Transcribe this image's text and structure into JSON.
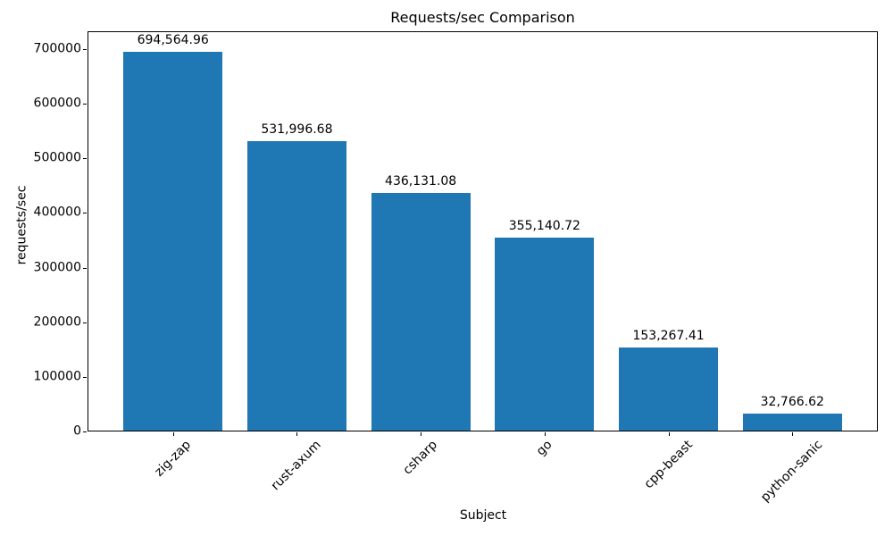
{
  "chart_data": {
    "type": "bar",
    "title": "Requests/sec Comparison",
    "xlabel": "Subject",
    "ylabel": "requests/sec",
    "categories": [
      "zig-zap",
      "rust-axum",
      "csharp",
      "go",
      "cpp-beast",
      "python-sanic"
    ],
    "values": [
      694564.96,
      531996.68,
      436131.08,
      355140.72,
      153267.41,
      32766.62
    ],
    "value_labels": [
      "694,564.96",
      "531,996.68",
      "436,131.08",
      "355,140.72",
      "153,267.41",
      "32,766.62"
    ],
    "y_ticks": [
      0,
      100000,
      200000,
      300000,
      400000,
      500000,
      600000,
      700000
    ],
    "y_tick_labels": [
      "0",
      "100000",
      "200000",
      "300000",
      "400000",
      "500000",
      "600000",
      "700000"
    ],
    "ylim": [
      0,
      732500
    ],
    "bar_color": "#1f77b4",
    "text_color": "#000000",
    "grid": false,
    "legend_position": "none"
  }
}
